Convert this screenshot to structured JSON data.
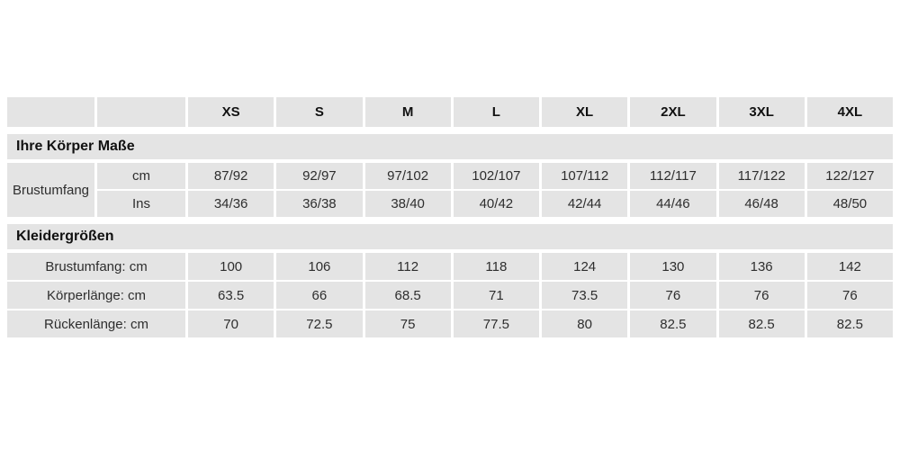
{
  "table": {
    "colors": {
      "cell_background": "#e4e4e4",
      "separator": "#ffffff",
      "header_text": "#111111",
      "data_text": "#2e2e2e"
    },
    "size_headers": [
      "XS",
      "S",
      "M",
      "L",
      "XL",
      "2XL",
      "3XL",
      "4XL"
    ],
    "section1": {
      "title": "Ihre Körper Maße",
      "row_label": "Brustumfang",
      "rows": [
        {
          "unit": "cm",
          "values": [
            "87/92",
            "92/97",
            "97/102",
            "102/107",
            "107/112",
            "112/117",
            "117/122",
            "122/127"
          ]
        },
        {
          "unit": "Ins",
          "values": [
            "34/36",
            "36/38",
            "38/40",
            "40/42",
            "42/44",
            "44/46",
            "46/48",
            "48/50"
          ]
        }
      ]
    },
    "section2": {
      "title": "Kleidergrößen",
      "rows": [
        {
          "label": "Brustumfang: cm",
          "values": [
            "100",
            "106",
            "112",
            "118",
            "124",
            "130",
            "136",
            "142"
          ]
        },
        {
          "label": "Körperlänge: cm",
          "values": [
            "63.5",
            "66",
            "68.5",
            "71",
            "73.5",
            "76",
            "76",
            "76"
          ]
        },
        {
          "label": "Rückenlänge: cm",
          "values": [
            "70",
            "72.5",
            "75",
            "77.5",
            "80",
            "82.5",
            "82.5",
            "82.5"
          ]
        }
      ]
    }
  }
}
